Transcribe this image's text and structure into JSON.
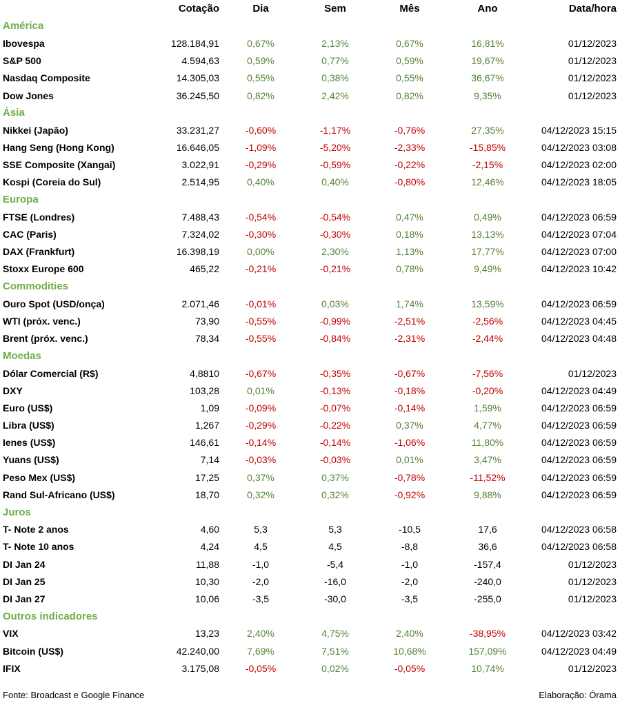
{
  "header": {
    "blank": "",
    "cotacao": "Cotação",
    "dia": "Dia",
    "sem": "Sem",
    "mes": "Mês",
    "ano": "Ano",
    "datahora": "Data/hora"
  },
  "colors": {
    "positive": "#548235",
    "negative": "#c00000",
    "section": "#70ad47"
  },
  "sections": [
    {
      "title": "América",
      "rows": [
        [
          "Ibovespa",
          "128.184,91",
          "0,67%",
          "2,13%",
          "0,67%",
          "16,81%",
          "01/12/2023"
        ],
        [
          "S&P 500",
          "4.594,63",
          "0,59%",
          "0,77%",
          "0,59%",
          "19,67%",
          "01/12/2023"
        ],
        [
          "Nasdaq Composite",
          "14.305,03",
          "0,55%",
          "0,38%",
          "0,55%",
          "36,67%",
          "01/12/2023"
        ],
        [
          "Dow Jones",
          "36.245,50",
          "0,82%",
          "2,42%",
          "0,82%",
          "9,35%",
          "01/12/2023"
        ]
      ]
    },
    {
      "title": "Ásia",
      "rows": [
        [
          "Nikkei (Japão)",
          "33.231,27",
          "-0,60%",
          "-1,17%",
          "-0,76%",
          "27,35%",
          "04/12/2023 15:15"
        ],
        [
          "Hang Seng (Hong Kong)",
          "16.646,05",
          "-1,09%",
          "-5,20%",
          "-2,33%",
          "-15,85%",
          "04/12/2023 03:08"
        ],
        [
          "SSE Composite (Xangai)",
          "3.022,91",
          "-0,29%",
          "-0,59%",
          "-0,22%",
          "-2,15%",
          "04/12/2023 02:00"
        ],
        [
          "Kospi (Coreia do Sul)",
          "2.514,95",
          "0,40%",
          "0,40%",
          "-0,80%",
          "12,46%",
          "04/12/2023 18:05"
        ]
      ]
    },
    {
      "title": "Europa",
      "rows": [
        [
          "FTSE (Londres)",
          "7.488,43",
          "-0,54%",
          "-0,54%",
          "0,47%",
          "0,49%",
          "04/12/2023 06:59"
        ],
        [
          "CAC (Paris)",
          "7.324,02",
          "-0,30%",
          "-0,30%",
          "0,18%",
          "13,13%",
          "04/12/2023 07:04"
        ],
        [
          "DAX (Frankfurt)",
          "16.398,19",
          "0,00%",
          "2,30%",
          "1,13%",
          "17,77%",
          "04/12/2023 07:00"
        ],
        [
          "Stoxx Europe 600",
          "465,22",
          "-0,21%",
          "-0,21%",
          "0,78%",
          "9,49%",
          "04/12/2023 10:42"
        ]
      ]
    },
    {
      "title": "Commodities",
      "rows": [
        [
          "Ouro Spot (USD/onça)",
          "2.071,46",
          "-0,01%",
          "0,03%",
          "1,74%",
          "13,59%",
          "04/12/2023 06:59"
        ],
        [
          "WTI (próx. venc.)",
          "73,90",
          "-0,55%",
          "-0,99%",
          "-2,51%",
          "-2,56%",
          "04/12/2023 04:45"
        ],
        [
          "Brent (próx. venc.)",
          "78,34",
          "-0,55%",
          "-0,84%",
          "-2,31%",
          "-2,44%",
          "04/12/2023 04:48"
        ]
      ]
    },
    {
      "title": "Moedas",
      "rows": [
        [
          "Dólar Comercial (R$)",
          "4,8810",
          "-0,67%",
          "-0,35%",
          "-0,67%",
          "-7,56%",
          "01/12/2023"
        ],
        [
          "DXY",
          "103,28",
          "0,01%",
          "-0,13%",
          "-0,18%",
          "-0,20%",
          "04/12/2023 04:49"
        ],
        [
          "Euro (US$)",
          "1,09",
          "-0,09%",
          "-0,07%",
          "-0,14%",
          "1,59%",
          "04/12/2023 06:59"
        ],
        [
          "Libra (US$)",
          "1,267",
          "-0,29%",
          "-0,22%",
          "0,37%",
          "4,77%",
          "04/12/2023 06:59"
        ],
        [
          "Ienes (US$)",
          "146,61",
          "-0,14%",
          "-0,14%",
          "-1,06%",
          "11,80%",
          "04/12/2023 06:59"
        ],
        [
          "Yuans (US$)",
          "7,14",
          "-0,03%",
          "-0,03%",
          "0,01%",
          "3,47%",
          "04/12/2023 06:59"
        ],
        [
          "Peso Mex (US$)",
          "17,25",
          "0,37%",
          "0,37%",
          "-0,78%",
          "-11,52%",
          "04/12/2023 06:59"
        ],
        [
          "Rand Sul-Africano (US$)",
          "18,70",
          "0,32%",
          "0,32%",
          "-0,92%",
          "9,88%",
          "04/12/2023 06:59"
        ]
      ]
    },
    {
      "title": "Juros",
      "plain": true,
      "rows": [
        [
          "T- Note 2 anos",
          "4,60",
          "5,3",
          "5,3",
          "-10,5",
          "17,6",
          "04/12/2023 06:58"
        ],
        [
          "T- Note 10 anos",
          "4,24",
          "4,5",
          "4,5",
          "-8,8",
          "36,6",
          "04/12/2023 06:58"
        ],
        [
          "DI Jan 24",
          "11,88",
          "-1,0",
          "-5,4",
          "-1,0",
          "-157,4",
          "01/12/2023"
        ],
        [
          "DI Jan 25",
          "10,30",
          "-2,0",
          "-16,0",
          "-2,0",
          "-240,0",
          "01/12/2023"
        ],
        [
          "DI Jan 27",
          "10,06",
          "-3,5",
          "-30,0",
          "-3,5",
          "-255,0",
          "01/12/2023"
        ]
      ]
    },
    {
      "title": "Outros indicadores",
      "rows": [
        [
          "VIX",
          "13,23",
          "2,40%",
          "4,75%",
          "2,40%",
          "-38,95%",
          "04/12/2023 03:42"
        ],
        [
          "Bitcoin (US$)",
          "42.240,00",
          "7,69%",
          "7,51%",
          "10,68%",
          "157,09%",
          "04/12/2023 04:49"
        ],
        [
          "IFIX",
          "3.175,08",
          "-0,05%",
          "0,02%",
          "-0,05%",
          "10,74%",
          "01/12/2023"
        ]
      ]
    }
  ],
  "footer": {
    "source": "Fonte: Broadcast e Google Finance",
    "credit": "Elaboração: Órama"
  }
}
